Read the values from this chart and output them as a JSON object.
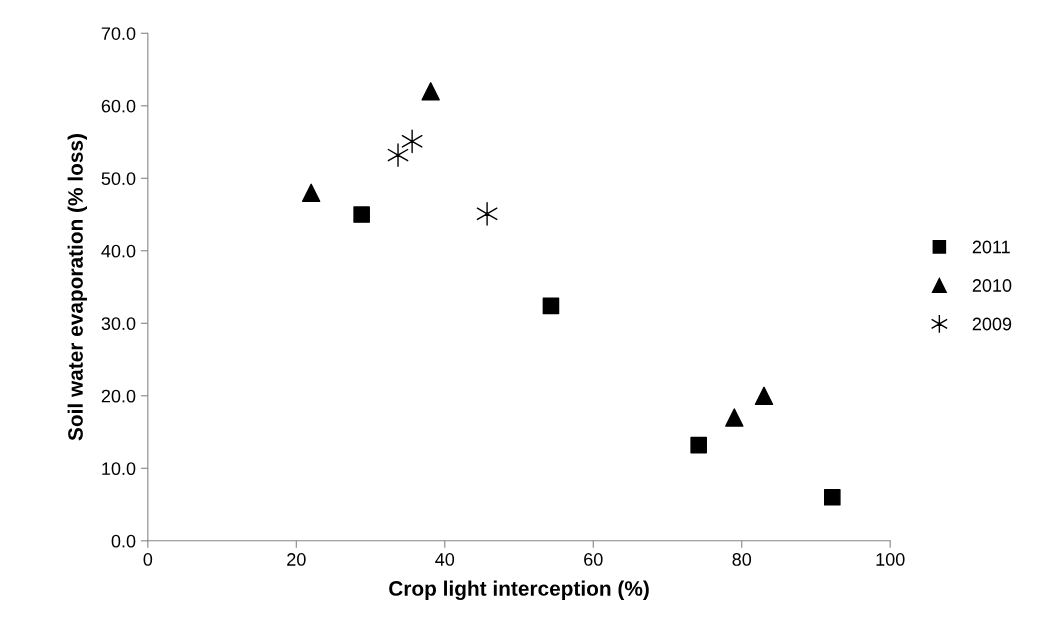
{
  "chart_data": {
    "type": "scatter",
    "xlabel": "Crop light interception (%)",
    "ylabel": "Soil water evaporation (% loss)",
    "series": [
      {
        "name": "2011",
        "color": "#000000",
        "marker": "square",
        "x": [
          28.8,
          54.3,
          74.2,
          92.2
        ],
        "values": [
          45.0,
          32.4,
          13.2,
          6.0
        ]
      },
      {
        "name": "2010",
        "color": "#000000",
        "marker": "triangle",
        "x": [
          22.0,
          38.1,
          79.0,
          83.0
        ],
        "values": [
          48.0,
          62.0,
          17.0,
          20.0
        ]
      },
      {
        "name": "2009",
        "color": "#000000",
        "marker": "cross",
        "x": [
          33.7,
          35.6,
          45.7
        ],
        "values": [
          53.2,
          55.1,
          45.1
        ]
      }
    ],
    "xlim": [
      0,
      100
    ],
    "xticks": [
      0,
      20,
      40,
      60,
      80,
      100
    ],
    "ylim": [
      0,
      70
    ],
    "yticks": [
      {
        "value": 0,
        "label": "0.0"
      },
      {
        "value": 10,
        "label": "10.0"
      },
      {
        "value": 20,
        "label": "20.0"
      },
      {
        "value": 30,
        "label": "30.0"
      },
      {
        "value": 40,
        "label": "40.0"
      },
      {
        "value": 50,
        "label": "50.0"
      },
      {
        "value": 60,
        "label": "60.0"
      },
      {
        "value": 70,
        "label": "70.0"
      }
    ],
    "grid": false,
    "legend": "right"
  }
}
